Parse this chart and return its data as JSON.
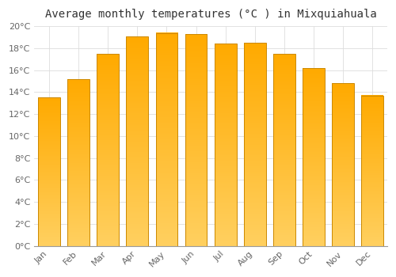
{
  "title": "Average monthly temperatures (°C ) in Mixquiahuala",
  "months": [
    "Jan",
    "Feb",
    "Mar",
    "Apr",
    "May",
    "Jun",
    "Jul",
    "Aug",
    "Sep",
    "Oct",
    "Nov",
    "Dec"
  ],
  "temperatures": [
    13.5,
    15.2,
    17.5,
    19.1,
    19.4,
    19.3,
    18.4,
    18.5,
    17.5,
    16.2,
    14.8,
    13.7
  ],
  "bar_color_top": "#FFAA00",
  "bar_color_bottom": "#FFD060",
  "bar_edge_color": "#CC8800",
  "background_color": "#FFFFFF",
  "grid_color": "#DDDDDD",
  "ylim": [
    0,
    20
  ],
  "ytick_step": 2,
  "title_fontsize": 10,
  "tick_fontsize": 8,
  "title_color": "#333333",
  "tick_color": "#666666",
  "bar_width": 0.75
}
